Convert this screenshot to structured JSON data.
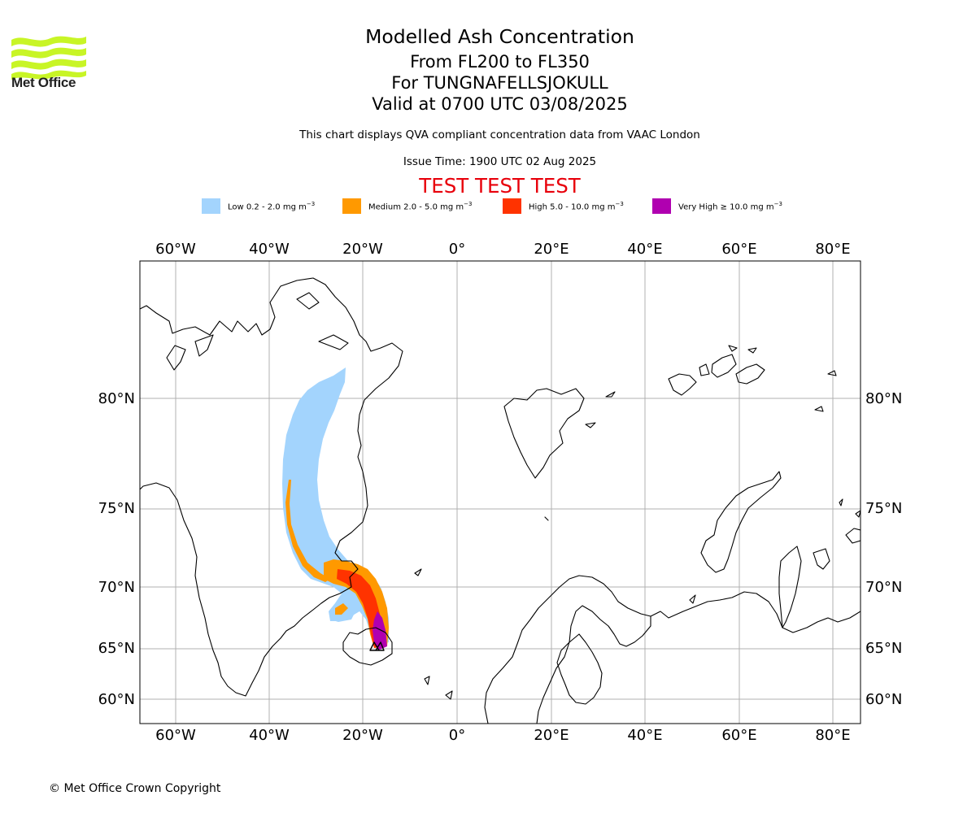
{
  "header": {
    "logo_text": "Met Office",
    "title": "Modelled Ash Concentration",
    "level_range": "From FL200 to FL350",
    "volcano": "For TUNGNAFELLSJOKULL",
    "valid_time": "Valid at 0700 UTC 03/08/2025",
    "compliance_note": "This chart displays QVA compliant concentration data from VAAC London",
    "issue_time": "Issue Time: 1900 UTC 02 Aug 2025",
    "test_banner": "TEST TEST TEST"
  },
  "legend": [
    {
      "label": "Low 0.2 - 2.0 mg m",
      "unit_exp": "−3",
      "color": "#a3d4fd"
    },
    {
      "label": "Medium 2.0 - 5.0 mg m",
      "unit_exp": "−3",
      "color": "#ff9900"
    },
    {
      "label": "High 5.0 - 10.0 mg m",
      "unit_exp": "−3",
      "color": "#ff3300"
    },
    {
      "label": "Very High ≥ 10.0 mg m",
      "unit_exp": "−3",
      "color": "#b000b0"
    }
  ],
  "map": {
    "longitude_labels": [
      "60°W",
      "40°W",
      "20°W",
      "0°",
      "20°E",
      "40°E",
      "60°E",
      "80°E"
    ],
    "latitude_labels": [
      "80°N",
      "75°N",
      "70°N",
      "65°N",
      "60°N"
    ],
    "grid": true,
    "colors": {
      "grid": "#b0b0b0",
      "coast": "#000000"
    }
  },
  "footer": {
    "copyright": "© Met Office Crown Copyright"
  }
}
